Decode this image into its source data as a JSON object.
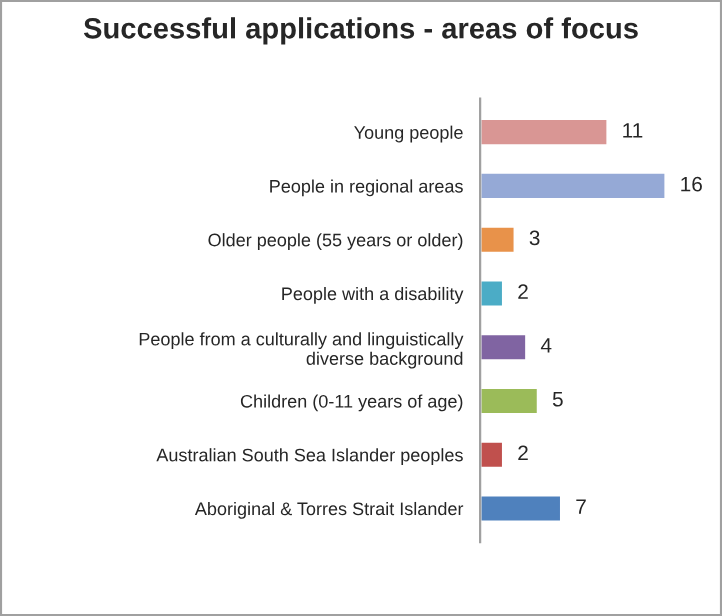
{
  "chart_data": {
    "type": "bar",
    "orientation": "horizontal",
    "title": "Successful applications - areas of focus",
    "categories": [
      "Young people",
      "People in regional areas",
      "Older people (55 years or older)",
      "People with a disability",
      "People from a culturally and linguistically\ndiverse background",
      "Children (0-11 years of age)",
      "Australian South Sea Islander peoples",
      "Aboriginal & Torres Strait Islander"
    ],
    "values": [
      11,
      16,
      3,
      2,
      4,
      5,
      2,
      7
    ],
    "colors": [
      "#d99694",
      "#95a9d6",
      "#e8924a",
      "#4bacc6",
      "#8064a2",
      "#9bbb59",
      "#c0504d",
      "#4f81bd"
    ],
    "data_labels": true,
    "grid": false,
    "legend": false
  }
}
